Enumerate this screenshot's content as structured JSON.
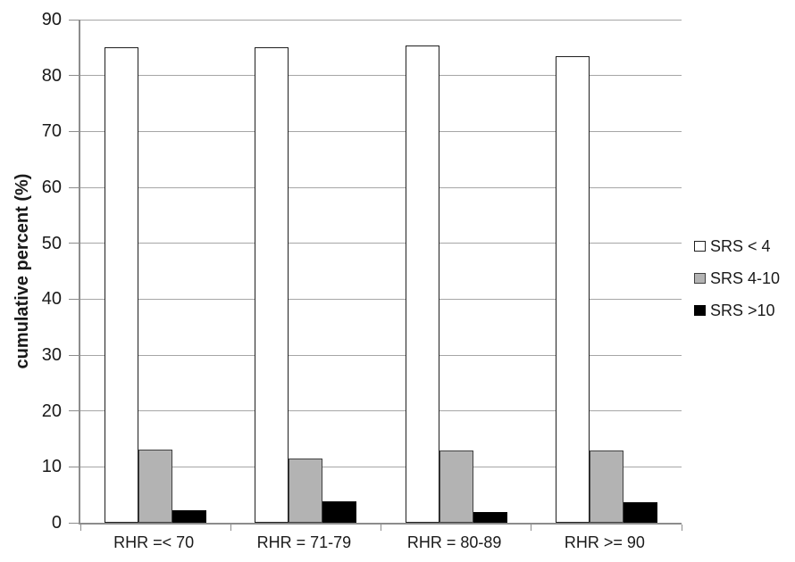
{
  "chart_data": {
    "type": "bar",
    "title": "",
    "xlabel": "",
    "ylabel": "cumulative percent (%)",
    "ylim": [
      0,
      90
    ],
    "ytick_step": 10,
    "yticks": [
      0,
      10,
      20,
      30,
      40,
      50,
      60,
      70,
      80,
      90
    ],
    "grid": "horizontal",
    "legend_position": "right",
    "categories": [
      "RHR =< 70",
      "RHR = 71-79",
      "RHR = 80-89",
      "RHR >= 90"
    ],
    "series": [
      {
        "name": "SRS < 4",
        "values": [
          85.0,
          85.0,
          85.4,
          83.5
        ],
        "fill": "#ffffff",
        "stroke": "#1f1f1f"
      },
      {
        "name": "SRS 4-10",
        "values": [
          13.1,
          11.5,
          13.0,
          13.0
        ],
        "fill": "#b3b3b3",
        "stroke": "#404040"
      },
      {
        "name": "SRS >10",
        "values": [
          2.2,
          3.8,
          1.9,
          3.6
        ],
        "fill": "#000000",
        "stroke": "#000000"
      }
    ]
  },
  "colors": {
    "gridline": "#a6a6a6",
    "axis": "#8c8c8c",
    "text": "#1a1a1a"
  }
}
